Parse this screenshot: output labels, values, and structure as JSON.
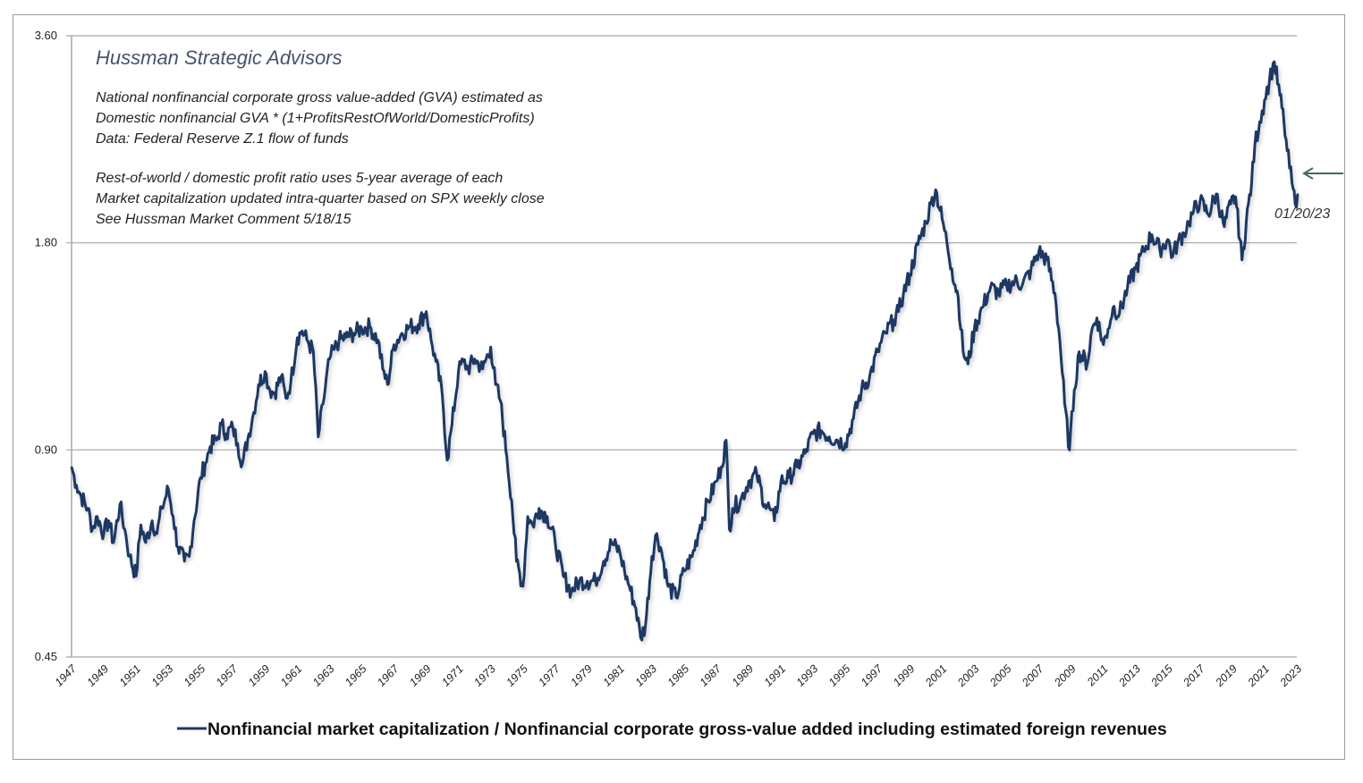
{
  "chart_data": {
    "type": "line",
    "title": "Hussman Strategic Advisors",
    "annotations": [
      "National nonfinancial corporate gross value-added  (GVA) estimated as",
      "Domestic nonfinancial GVA * (1+ProfitsRestOfWorld/DomesticProfits)",
      "Data: Federal Reserve Z.1 flow of funds",
      "",
      "Rest-of-world  / domestic profit ratio uses 5-year average of each",
      "Market capitalization updated  intra-quarter based on SPX weekly close",
      "See Hussman Market Comment 5/18/15"
    ],
    "latest_label": "01/20/23",
    "xlabel": "",
    "ylabel": "",
    "yscale": "log2",
    "ylim": [
      0.45,
      3.6
    ],
    "xlim": [
      1947,
      2023
    ],
    "yticks": [
      "0.45",
      "0.90",
      "1.80",
      "3.60"
    ],
    "ytick_values": [
      0.45,
      0.9,
      1.8,
      3.6
    ],
    "xticks": [
      "1947",
      "1949",
      "1951",
      "1953",
      "1955",
      "1957",
      "1959",
      "1961",
      "1963",
      "1965",
      "1967",
      "1969",
      "1971",
      "1973",
      "1975",
      "1977",
      "1979",
      "1981",
      "1983",
      "1985",
      "1987",
      "1989",
      "1991",
      "1993",
      "1995",
      "1997",
      "1999",
      "2001",
      "2003",
      "2005",
      "2007",
      "2009",
      "2011",
      "2013",
      "2015",
      "2017",
      "2019",
      "2021",
      "2023"
    ],
    "grid": "horizontal",
    "legend_position": "bottom",
    "colors": {
      "line": "#1f3864",
      "grid": "#a6a6a6",
      "arrow": "#3d6b6b",
      "title": "#44546a"
    },
    "series": [
      {
        "name": "Nonfinancial market capitalization / Nonfinancial corporate gross-value added including estimated foreign revenues",
        "x": [
          1947.0,
          1947.3,
          1947.6,
          1948.0,
          1948.3,
          1948.6,
          1949.0,
          1949.3,
          1949.6,
          1950.0,
          1950.3,
          1950.6,
          1951.0,
          1951.3,
          1951.6,
          1952.0,
          1952.3,
          1952.6,
          1953.0,
          1953.3,
          1953.6,
          1954.0,
          1954.3,
          1954.6,
          1955.0,
          1955.3,
          1955.6,
          1956.0,
          1956.3,
          1956.6,
          1957.0,
          1957.3,
          1957.6,
          1958.0,
          1958.3,
          1958.6,
          1959.0,
          1959.3,
          1959.6,
          1960.0,
          1960.3,
          1960.6,
          1961.0,
          1961.3,
          1961.6,
          1962.0,
          1962.3,
          1962.6,
          1963.0,
          1963.3,
          1963.6,
          1964.0,
          1964.5,
          1965.0,
          1965.5,
          1966.0,
          1966.3,
          1966.6,
          1967.0,
          1967.5,
          1968.0,
          1968.5,
          1969.0,
          1969.3,
          1969.6,
          1970.0,
          1970.3,
          1970.6,
          1971.0,
          1971.3,
          1971.6,
          1972.0,
          1972.5,
          1973.0,
          1973.3,
          1973.6,
          1974.0,
          1974.3,
          1974.6,
          1975.0,
          1975.3,
          1975.6,
          1976.0,
          1976.5,
          1977.0,
          1977.5,
          1978.0,
          1978.5,
          1979.0,
          1979.5,
          1980.0,
          1980.5,
          1981.0,
          1981.3,
          1981.6,
          1982.0,
          1982.3,
          1982.6,
          1983.0,
          1983.3,
          1983.6,
          1984.0,
          1984.5,
          1985.0,
          1985.5,
          1986.0,
          1986.5,
          1987.0,
          1987.3,
          1987.6,
          1987.8,
          1988.0,
          1988.5,
          1989.0,
          1989.5,
          1990.0,
          1990.3,
          1990.6,
          1991.0,
          1991.5,
          1992.0,
          1992.5,
          1993.0,
          1993.5,
          1994.0,
          1994.5,
          1995.0,
          1995.5,
          1996.0,
          1996.5,
          1997.0,
          1997.5,
          1998.0,
          1998.3,
          1998.6,
          1999.0,
          1999.5,
          2000.0,
          2000.3,
          2000.6,
          2001.0,
          2001.3,
          2001.6,
          2002.0,
          2002.3,
          2002.6,
          2003.0,
          2003.5,
          2004.0,
          2004.5,
          2005.0,
          2005.5,
          2006.0,
          2006.5,
          2007.0,
          2007.5,
          2008.0,
          2008.3,
          2008.6,
          2008.9,
          2009.2,
          2009.5,
          2010.0,
          2010.3,
          2010.6,
          2011.0,
          2011.3,
          2011.6,
          2012.0,
          2012.5,
          2013.0,
          2013.5,
          2014.0,
          2014.5,
          2015.0,
          2015.3,
          2015.6,
          2016.0,
          2016.3,
          2016.6,
          2017.0,
          2017.5,
          2018.0,
          2018.5,
          2018.9,
          2019.2,
          2019.6,
          2020.0,
          2020.2,
          2020.4,
          2020.7,
          2021.0,
          2021.3,
          2021.6,
          2021.95,
          2022.2,
          2022.4,
          2022.7,
          2022.9,
          2023.05
        ],
        "y": [
          0.85,
          0.8,
          0.77,
          0.74,
          0.69,
          0.72,
          0.68,
          0.71,
          0.66,
          0.75,
          0.69,
          0.63,
          0.59,
          0.7,
          0.66,
          0.71,
          0.68,
          0.74,
          0.79,
          0.72,
          0.65,
          0.62,
          0.63,
          0.71,
          0.82,
          0.86,
          0.91,
          0.93,
          0.98,
          0.95,
          0.97,
          0.92,
          0.86,
          0.95,
          1.02,
          1.12,
          1.17,
          1.1,
          1.09,
          1.15,
          1.07,
          1.13,
          1.31,
          1.34,
          1.3,
          1.25,
          0.94,
          1.05,
          1.22,
          1.26,
          1.3,
          1.31,
          1.33,
          1.35,
          1.36,
          1.3,
          1.18,
          1.12,
          1.28,
          1.33,
          1.36,
          1.37,
          1.43,
          1.3,
          1.21,
          1.08,
          0.87,
          0.98,
          1.17,
          1.21,
          1.18,
          1.22,
          1.18,
          1.27,
          1.12,
          1.06,
          0.88,
          0.76,
          0.62,
          0.57,
          0.72,
          0.7,
          0.74,
          0.72,
          0.66,
          0.59,
          0.56,
          0.58,
          0.58,
          0.58,
          0.62,
          0.66,
          0.64,
          0.6,
          0.57,
          0.53,
          0.48,
          0.5,
          0.63,
          0.68,
          0.64,
          0.57,
          0.55,
          0.6,
          0.63,
          0.7,
          0.76,
          0.81,
          0.85,
          0.93,
          0.69,
          0.74,
          0.76,
          0.81,
          0.83,
          0.75,
          0.74,
          0.71,
          0.81,
          0.82,
          0.85,
          0.89,
          0.95,
          0.96,
          0.94,
          0.93,
          0.92,
          1.0,
          1.1,
          1.15,
          1.25,
          1.33,
          1.39,
          1.43,
          1.52,
          1.62,
          1.79,
          1.93,
          2.05,
          2.15,
          1.95,
          1.8,
          1.65,
          1.5,
          1.25,
          1.2,
          1.35,
          1.45,
          1.55,
          1.52,
          1.56,
          1.58,
          1.57,
          1.64,
          1.75,
          1.7,
          1.52,
          1.3,
          1.05,
          0.9,
          1.1,
          1.25,
          1.2,
          1.35,
          1.4,
          1.28,
          1.35,
          1.45,
          1.42,
          1.55,
          1.65,
          1.75,
          1.85,
          1.76,
          1.82,
          1.72,
          1.8,
          1.86,
          1.93,
          2.0,
          2.07,
          1.98,
          2.12,
          1.9,
          2.05,
          2.1,
          1.7,
          2.05,
          2.2,
          2.5,
          2.7,
          2.9,
          3.1,
          3.3,
          2.95,
          2.7,
          2.45,
          2.2,
          2.05,
          2.12
        ]
      }
    ]
  }
}
